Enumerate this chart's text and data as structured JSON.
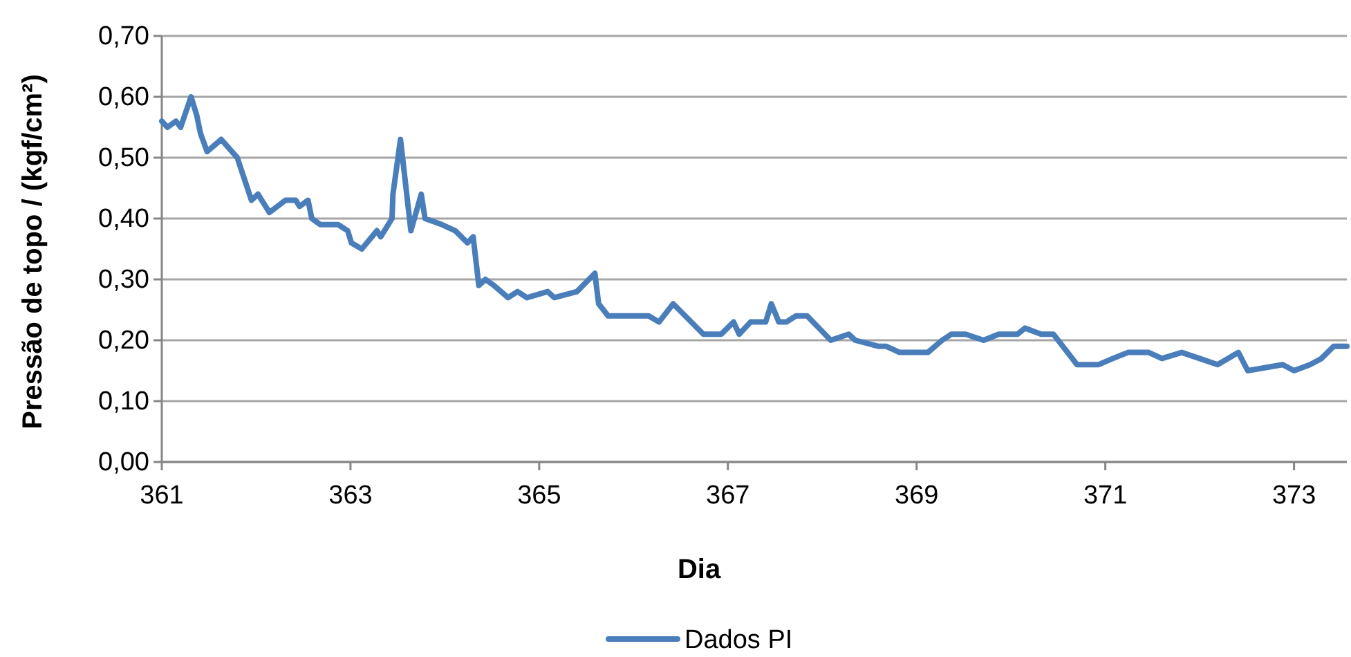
{
  "chart_data": {
    "type": "line",
    "xlabel": "Dia",
    "ylabel": "Pressão de topo / (kgf/cm²)",
    "x": [
      361.0,
      361.06,
      361.15,
      361.2,
      361.31,
      361.37,
      361.41,
      361.48,
      361.63,
      361.8,
      361.95,
      362.02,
      362.14,
      362.31,
      362.42,
      362.46,
      362.55,
      362.59,
      362.68,
      362.87,
      362.97,
      363.01,
      363.12,
      363.28,
      363.32,
      363.44,
      363.45,
      363.53,
      363.64,
      363.75,
      363.79,
      363.97,
      364.11,
      364.24,
      364.3,
      364.36,
      364.43,
      364.52,
      364.67,
      364.77,
      364.87,
      365.09,
      365.16,
      365.4,
      365.59,
      365.63,
      365.73,
      366.08,
      366.16,
      366.27,
      366.42,
      366.74,
      366.93,
      367.06,
      367.12,
      367.24,
      367.4,
      367.46,
      367.54,
      367.62,
      367.72,
      367.84,
      368.09,
      368.28,
      368.35,
      368.6,
      368.68,
      368.82,
      368.93,
      369.12,
      369.27,
      369.37,
      369.52,
      369.71,
      369.87,
      370.07,
      370.15,
      370.32,
      370.45,
      370.7,
      370.93,
      371.08,
      371.24,
      371.46,
      371.6,
      371.81,
      372.0,
      372.19,
      372.41,
      372.51,
      372.88,
      373.0,
      373.17,
      373.29,
      373.42,
      373.56
    ],
    "series": [
      {
        "name": "Dados PI",
        "color": "#4a7ebb",
        "values": [
          0.56,
          0.55,
          0.56,
          0.55,
          0.6,
          0.57,
          0.54,
          0.51,
          0.53,
          0.5,
          0.43,
          0.44,
          0.41,
          0.43,
          0.43,
          0.42,
          0.43,
          0.4,
          0.39,
          0.39,
          0.38,
          0.36,
          0.35,
          0.38,
          0.37,
          0.4,
          0.44,
          0.53,
          0.38,
          0.44,
          0.4,
          0.39,
          0.38,
          0.36,
          0.37,
          0.29,
          0.3,
          0.29,
          0.27,
          0.28,
          0.27,
          0.28,
          0.27,
          0.28,
          0.31,
          0.26,
          0.24,
          0.24,
          0.24,
          0.23,
          0.26,
          0.21,
          0.21,
          0.23,
          0.21,
          0.23,
          0.23,
          0.26,
          0.23,
          0.23,
          0.24,
          0.24,
          0.2,
          0.21,
          0.2,
          0.19,
          0.19,
          0.18,
          0.18,
          0.18,
          0.2,
          0.21,
          0.21,
          0.2,
          0.21,
          0.21,
          0.22,
          0.21,
          0.21,
          0.16,
          0.16,
          0.17,
          0.18,
          0.18,
          0.17,
          0.18,
          0.17,
          0.16,
          0.18,
          0.15,
          0.16,
          0.15,
          0.16,
          0.17,
          0.19,
          0.19
        ]
      }
    ],
    "xlim": [
      361,
      373.56
    ],
    "xticks": [
      361,
      363,
      365,
      367,
      369,
      371,
      373
    ],
    "ylim": [
      0,
      0.7
    ],
    "yticks": [
      {
        "value": 0,
        "label": "0,00"
      },
      {
        "value": 0.1,
        "label": "0,10"
      },
      {
        "value": 0.2,
        "label": "0,20"
      },
      {
        "value": 0.3,
        "label": "0,30"
      },
      {
        "value": 0.4,
        "label": "0,40"
      },
      {
        "value": 0.5,
        "label": "0,50"
      },
      {
        "value": 0.6,
        "label": "0,60"
      },
      {
        "value": 0.7,
        "label": "0,70"
      }
    ],
    "grid": "y",
    "legend": "bottom",
    "marker": "none",
    "line_style": "solid"
  }
}
